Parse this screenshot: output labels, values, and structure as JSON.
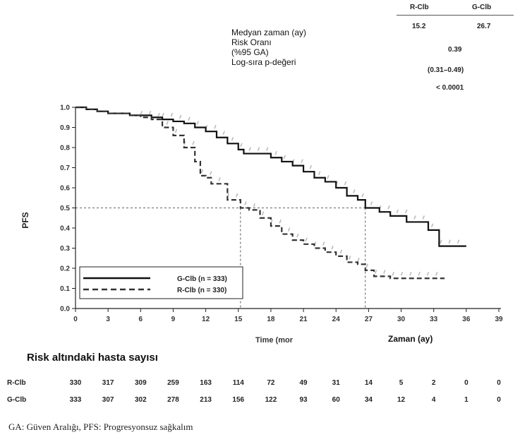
{
  "stats_table": {
    "headers": [
      "R-Clb",
      "G-Clb"
    ],
    "median_label": "Medyan zaman (ay)",
    "median_values": [
      "15.2",
      "26.7"
    ],
    "hr_label": "Risk Oranı",
    "ci_label": "(%95 GA)",
    "hr_value": "0.39",
    "ci_value": "(0.31–0.49)",
    "p_label": "Log-sıra p-değeri",
    "p_value": "< 0.0001"
  },
  "chart_data": {
    "type": "line",
    "ylabel": "PFS",
    "xlabel": "Time (mor",
    "xlabel_overlay": "Zaman (ay)",
    "xlim": [
      0,
      39
    ],
    "ylim": [
      0,
      1.0
    ],
    "x_ticks": [
      0,
      3,
      6,
      9,
      12,
      15,
      18,
      21,
      24,
      27,
      30,
      33,
      36,
      39
    ],
    "y_ticks": [
      "0.0",
      "0.1",
      "0.2",
      "0.3",
      "0.4",
      "0.5",
      "0.6",
      "0.7",
      "0.8",
      "0.9",
      "1.0"
    ],
    "median_line_y": 0.5,
    "median_x": [
      15.2,
      26.7
    ],
    "legend_position": "bottom-left",
    "series": [
      {
        "name": "G-Clb (n = 333)",
        "style": "solid",
        "color": "#111111",
        "censor_color": "#bbbbbb",
        "points": [
          [
            0,
            1.0
          ],
          [
            1,
            0.99
          ],
          [
            2,
            0.98
          ],
          [
            3,
            0.97
          ],
          [
            5,
            0.96
          ],
          [
            6,
            0.96
          ],
          [
            7,
            0.95
          ],
          [
            8,
            0.94
          ],
          [
            9,
            0.93
          ],
          [
            10,
            0.92
          ],
          [
            11,
            0.9
          ],
          [
            12,
            0.88
          ],
          [
            13,
            0.85
          ],
          [
            14,
            0.82
          ],
          [
            15,
            0.79
          ],
          [
            15.5,
            0.77
          ],
          [
            17,
            0.77
          ],
          [
            18,
            0.75
          ],
          [
            19,
            0.73
          ],
          [
            20,
            0.71
          ],
          [
            21,
            0.68
          ],
          [
            22,
            0.65
          ],
          [
            23,
            0.63
          ],
          [
            24,
            0.6
          ],
          [
            25,
            0.56
          ],
          [
            26,
            0.54
          ],
          [
            26.7,
            0.5
          ],
          [
            28,
            0.48
          ],
          [
            29,
            0.46
          ],
          [
            30,
            0.46
          ],
          [
            30.5,
            0.43
          ],
          [
            32,
            0.43
          ],
          [
            32.5,
            0.39
          ],
          [
            33.5,
            0.39
          ],
          [
            33.5,
            0.31
          ],
          [
            36,
            0.31
          ]
        ]
      },
      {
        "name": "R-Clb (n = 330)",
        "style": "dashed",
        "color": "#333333",
        "censor_color": "#bbbbbb",
        "points": [
          [
            0,
            1.0
          ],
          [
            1,
            0.99
          ],
          [
            2,
            0.98
          ],
          [
            3,
            0.97
          ],
          [
            5,
            0.96
          ],
          [
            6,
            0.95
          ],
          [
            7,
            0.94
          ],
          [
            8,
            0.9
          ],
          [
            9,
            0.86
          ],
          [
            10,
            0.8
          ],
          [
            11,
            0.73
          ],
          [
            11.5,
            0.66
          ],
          [
            12,
            0.65
          ],
          [
            12.5,
            0.62
          ],
          [
            13.5,
            0.62
          ],
          [
            14,
            0.54
          ],
          [
            15.2,
            0.5
          ],
          [
            16,
            0.49
          ],
          [
            17,
            0.45
          ],
          [
            18,
            0.41
          ],
          [
            19,
            0.37
          ],
          [
            20,
            0.34
          ],
          [
            21,
            0.32
          ],
          [
            22,
            0.3
          ],
          [
            23,
            0.28
          ],
          [
            24,
            0.26
          ],
          [
            25,
            0.23
          ],
          [
            26,
            0.22
          ],
          [
            26.7,
            0.19
          ],
          [
            27.5,
            0.16
          ],
          [
            29,
            0.15
          ],
          [
            34,
            0.15
          ]
        ]
      }
    ]
  },
  "risk_table": {
    "title": "Risk altındaki hasta sayısı",
    "rows": [
      {
        "label": "R-Clb",
        "values": [
          "330",
          "317",
          "309",
          "259",
          "163",
          "114",
          "72",
          "49",
          "31",
          "14",
          "5",
          "2",
          "0",
          "0"
        ]
      },
      {
        "label": "G-Clb",
        "values": [
          "333",
          "307",
          "302",
          "278",
          "213",
          "156",
          "122",
          "93",
          "60",
          "34",
          "12",
          "4",
          "1",
          "0"
        ]
      }
    ]
  },
  "footer": "GA: Güven Aralığı, PFS: Progresyonsuz sağkalım"
}
